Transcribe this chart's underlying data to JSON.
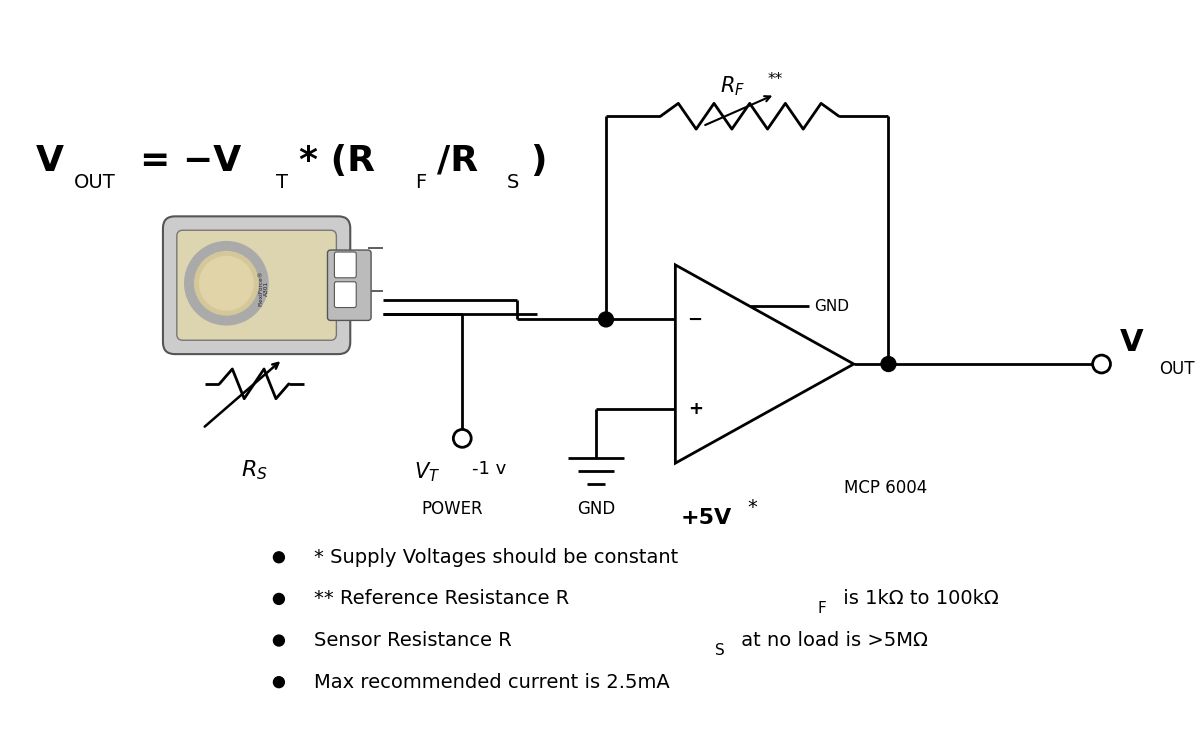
{
  "bg_color": "#ffffff",
  "line_color": "#000000",
  "fig_width": 12.0,
  "fig_height": 7.34,
  "dpi": 100,
  "xlim": [
    0,
    12
  ],
  "ylim": [
    0,
    7.34
  ],
  "sensor_body_color": "#e8dfc0",
  "sensor_circle_color": "#d4c4a0",
  "sensor_ring_color": "#888888",
  "formula_fontsize": 26,
  "formula_sub_fontsize": 14,
  "circuit_lw": 2.0,
  "bullet_fontsize": 14,
  "bullet_items": [
    "* Supply Voltages should be constant",
    "** Reference Resistance R",
    "Sensor Resistance R",
    "Max recommended current is 2.5mA"
  ]
}
